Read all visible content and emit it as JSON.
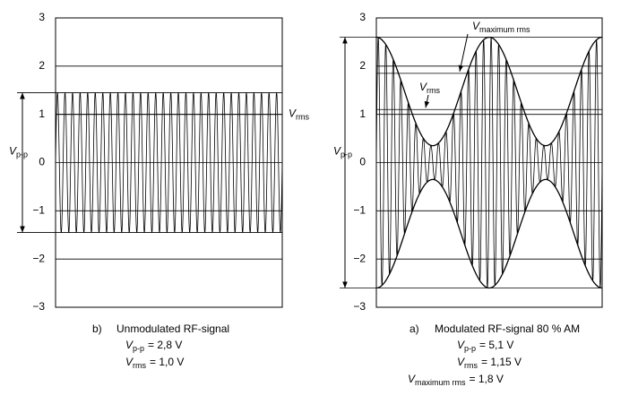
{
  "chart_data": [
    {
      "type": "am-waveform",
      "caption_label": "b)",
      "caption": "Unmodulated RF-signal",
      "ylim": [
        -3,
        3
      ],
      "yticks": [
        3,
        2,
        1,
        0,
        {
          "value": -1,
          "label": "−1"
        },
        {
          "value": -2,
          "label": "−2"
        },
        {
          "value": -3,
          "label": "−3"
        }
      ],
      "grid": true,
      "color": "#000000",
      "envelope_max": 1.45,
      "envelope_min": 1.45,
      "carrier_cycles": 30,
      "peak_to_peak_label": {
        "symbol": "V",
        "sub": "p-p"
      },
      "annotations": [
        {
          "symbol": "V",
          "sub": "rms",
          "value": 1
        }
      ],
      "formulas": [
        {
          "symbol": "V",
          "sub": "p-p",
          "text": "= 2,8 V"
        },
        {
          "symbol": "V",
          "sub": "rms",
          "text": "= 1,0 V"
        }
      ]
    },
    {
      "type": "am-waveform",
      "caption_label": "a)",
      "caption": "Modulated RF-signal 80 % AM",
      "ylim": [
        -3,
        3
      ],
      "yticks": [
        3,
        2,
        1,
        0,
        {
          "value": -1,
          "label": "−1"
        },
        {
          "value": -2,
          "label": "−2"
        },
        {
          "value": -3,
          "label": "−3"
        }
      ],
      "grid": true,
      "color": "#000000",
      "envelope_max": 2.6,
      "envelope_min": 0.35,
      "envelope_cycles": 2,
      "carrier_cycles": 30,
      "peak_to_peak_label": {
        "symbol": "V",
        "sub": "p-p"
      },
      "annotations": [
        {
          "symbol": "V",
          "sub": "maximum rms",
          "value": 1.85
        },
        {
          "symbol": "V",
          "sub": "rms",
          "value": 1.1
        }
      ],
      "formulas": [
        {
          "symbol": "V",
          "sub": "p-p",
          "text": "= 5,1 V"
        },
        {
          "symbol": "V",
          "sub": "rms",
          "text": "= 1,15 V"
        },
        {
          "symbol": "V",
          "sub": "maximum rms",
          "text": "= 1,8 V"
        }
      ]
    }
  ]
}
